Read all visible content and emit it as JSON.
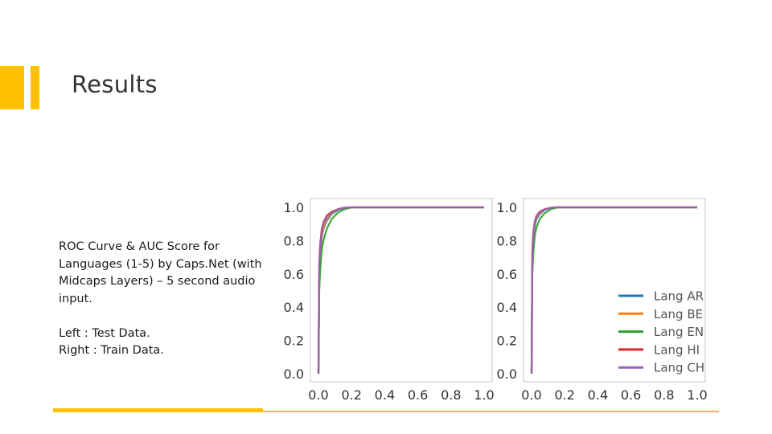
{
  "slide": {
    "title": "Results",
    "description": "ROC Curve & AUC Score for Languages (1-5) by Caps.Net (with Midcaps Layers) – 5 second audio input.",
    "left_label": "Left : Test Data.",
    "right_label": "Right : Train Data.",
    "accent_color": "#FFC000"
  },
  "chart_data": [
    {
      "type": "line",
      "title": "",
      "xlabel": "",
      "ylabel": "",
      "xlim": [
        0.0,
        1.0
      ],
      "ylim": [
        0.0,
        1.0
      ],
      "xticks": [
        "0.0",
        "0.2",
        "0.4",
        "0.6",
        "0.8",
        "1.0"
      ],
      "yticks": [
        "0.0",
        "0.2",
        "0.4",
        "0.6",
        "0.8",
        "1.0"
      ],
      "grid": false,
      "legend": "none",
      "series": [
        {
          "color": "#1f77b4",
          "x": [
            0,
            0.005,
            0.01,
            0.02,
            0.03,
            0.05,
            0.08,
            0.12,
            0.15,
            0.2,
            1.0
          ],
          "y": [
            0,
            0.6,
            0.72,
            0.82,
            0.87,
            0.92,
            0.96,
            0.985,
            0.995,
            1.0,
            1.0
          ]
        },
        {
          "color": "#ff7f0e",
          "x": [
            0,
            0.005,
            0.01,
            0.02,
            0.03,
            0.05,
            0.08,
            0.12,
            0.15,
            0.2,
            1.0
          ],
          "y": [
            0,
            0.62,
            0.74,
            0.83,
            0.88,
            0.93,
            0.965,
            0.99,
            0.997,
            1.0,
            1.0
          ]
        },
        {
          "color": "#2ca02c",
          "x": [
            0,
            0.005,
            0.01,
            0.02,
            0.03,
            0.05,
            0.08,
            0.12,
            0.16,
            0.2,
            1.0
          ],
          "y": [
            0,
            0.5,
            0.62,
            0.74,
            0.8,
            0.87,
            0.93,
            0.97,
            0.99,
            1.0,
            1.0
          ]
        },
        {
          "color": "#d62728",
          "x": [
            0,
            0.005,
            0.01,
            0.02,
            0.03,
            0.05,
            0.08,
            0.12,
            0.15,
            0.2,
            1.0
          ],
          "y": [
            0,
            0.66,
            0.78,
            0.87,
            0.91,
            0.95,
            0.975,
            0.99,
            0.997,
            1.0,
            1.0
          ]
        },
        {
          "color": "#9467bd",
          "x": [
            0,
            0.005,
            0.01,
            0.02,
            0.03,
            0.05,
            0.08,
            0.12,
            0.15,
            0.2,
            1.0
          ],
          "y": [
            0,
            0.64,
            0.76,
            0.85,
            0.9,
            0.94,
            0.97,
            0.99,
            0.997,
            1.0,
            1.0
          ]
        }
      ]
    },
    {
      "type": "line",
      "title": "",
      "xlabel": "",
      "ylabel": "",
      "xlim": [
        0.0,
        1.0
      ],
      "ylim": [
        0.0,
        1.0
      ],
      "xticks": [
        "0.0",
        "0.2",
        "0.4",
        "0.6",
        "0.8",
        "1.0"
      ],
      "yticks": [
        "0.0",
        "0.2",
        "0.4",
        "0.6",
        "0.8",
        "1.0"
      ],
      "grid": false,
      "legend": "lower-right",
      "series": [
        {
          "name": "Lang AR",
          "color": "#1f77b4",
          "x": [
            0,
            0.005,
            0.01,
            0.02,
            0.03,
            0.05,
            0.08,
            0.12,
            0.15,
            1.0
          ],
          "y": [
            0,
            0.7,
            0.8,
            0.89,
            0.93,
            0.96,
            0.985,
            0.997,
            1.0,
            1.0
          ]
        },
        {
          "name": "Lang BE",
          "color": "#ff7f0e",
          "x": [
            0,
            0.005,
            0.01,
            0.02,
            0.03,
            0.05,
            0.08,
            0.12,
            0.15,
            1.0
          ],
          "y": [
            0,
            0.72,
            0.82,
            0.9,
            0.94,
            0.965,
            0.988,
            0.998,
            1.0,
            1.0
          ]
        },
        {
          "name": "Lang EN",
          "color": "#2ca02c",
          "x": [
            0,
            0.005,
            0.01,
            0.02,
            0.03,
            0.05,
            0.08,
            0.12,
            0.16,
            1.0
          ],
          "y": [
            0,
            0.6,
            0.72,
            0.83,
            0.88,
            0.93,
            0.965,
            0.99,
            1.0,
            1.0
          ]
        },
        {
          "name": "Lang HI",
          "color": "#d62728",
          "x": [
            0,
            0.005,
            0.01,
            0.02,
            0.03,
            0.05,
            0.08,
            0.12,
            0.15,
            1.0
          ],
          "y": [
            0,
            0.75,
            0.85,
            0.92,
            0.95,
            0.975,
            0.99,
            0.998,
            1.0,
            1.0
          ]
        },
        {
          "name": "Lang CH",
          "color": "#9467bd",
          "x": [
            0,
            0.005,
            0.01,
            0.02,
            0.03,
            0.05,
            0.08,
            0.12,
            0.15,
            1.0
          ],
          "y": [
            0,
            0.73,
            0.83,
            0.91,
            0.945,
            0.97,
            0.988,
            0.998,
            1.0,
            1.0
          ]
        }
      ]
    }
  ]
}
